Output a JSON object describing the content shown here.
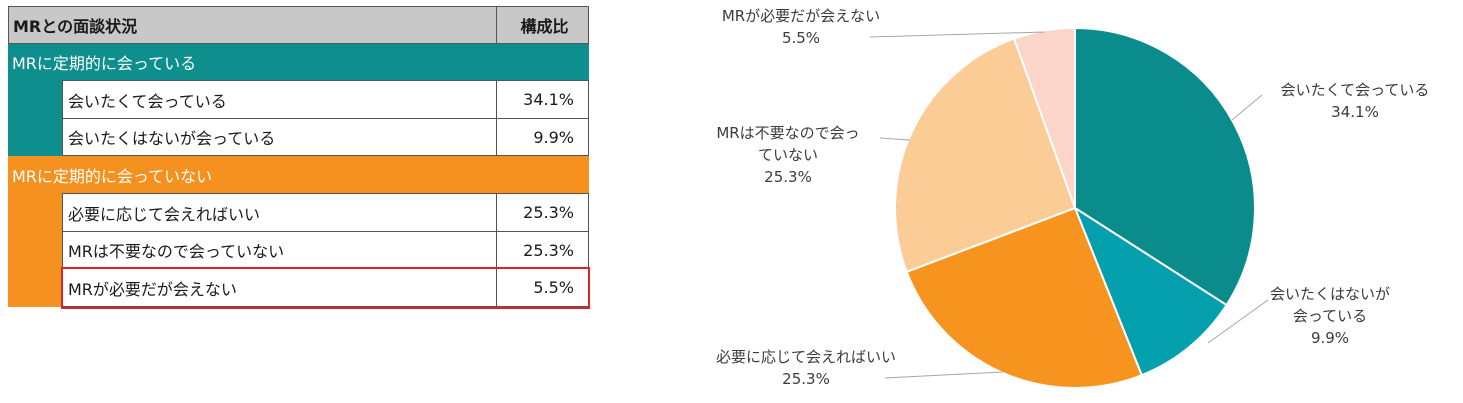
{
  "table": {
    "header": {
      "title": "MRとの面談状況",
      "ratio": "構成比"
    },
    "groups": [
      {
        "label": "MRに定期的に会っている",
        "color": "#0f8e8e",
        "rows": [
          {
            "label": "会いたくて会っている",
            "value": "34.1%"
          },
          {
            "label": "会いたくはないが会っている",
            "value": "9.9%"
          }
        ]
      },
      {
        "label": "MRに定期的に会っていない",
        "color": "#f5911e",
        "rows": [
          {
            "label": "必要に応じて会えればいい",
            "value": "25.3%"
          },
          {
            "label": "MRは不要なので会っていない",
            "value": "25.3%"
          },
          {
            "label": "MRが必要だが会えない",
            "value": "5.5%"
          }
        ]
      }
    ],
    "highlight_color": "#d9242b"
  },
  "chart_data": {
    "type": "pie",
    "slices": [
      {
        "label_lines": [
          "会いたくて会っている"
        ],
        "value": 34.1,
        "value_label": "34.1%",
        "color": "#0b8c8c"
      },
      {
        "label_lines": [
          "会いたくはないが",
          "会っている"
        ],
        "value": 9.9,
        "value_label": "9.9%",
        "color": "#04a0ae"
      },
      {
        "label_lines": [
          "必要に応じて会えればいい"
        ],
        "value": 25.3,
        "value_label": "25.3%",
        "color": "#f7941f"
      },
      {
        "label_lines": [
          "MRは不要なので会っ",
          "ていない"
        ],
        "value": 25.3,
        "value_label": "25.3%",
        "color": "#fccc96"
      },
      {
        "label_lines": [
          "MRが必要だが会えない"
        ],
        "value": 5.5,
        "value_label": "5.5%",
        "color": "#fbd4ca"
      }
    ],
    "start": "12 o'clock",
    "direction": "clockwise",
    "legend": "none",
    "data_labels": "outside with leader lines"
  }
}
